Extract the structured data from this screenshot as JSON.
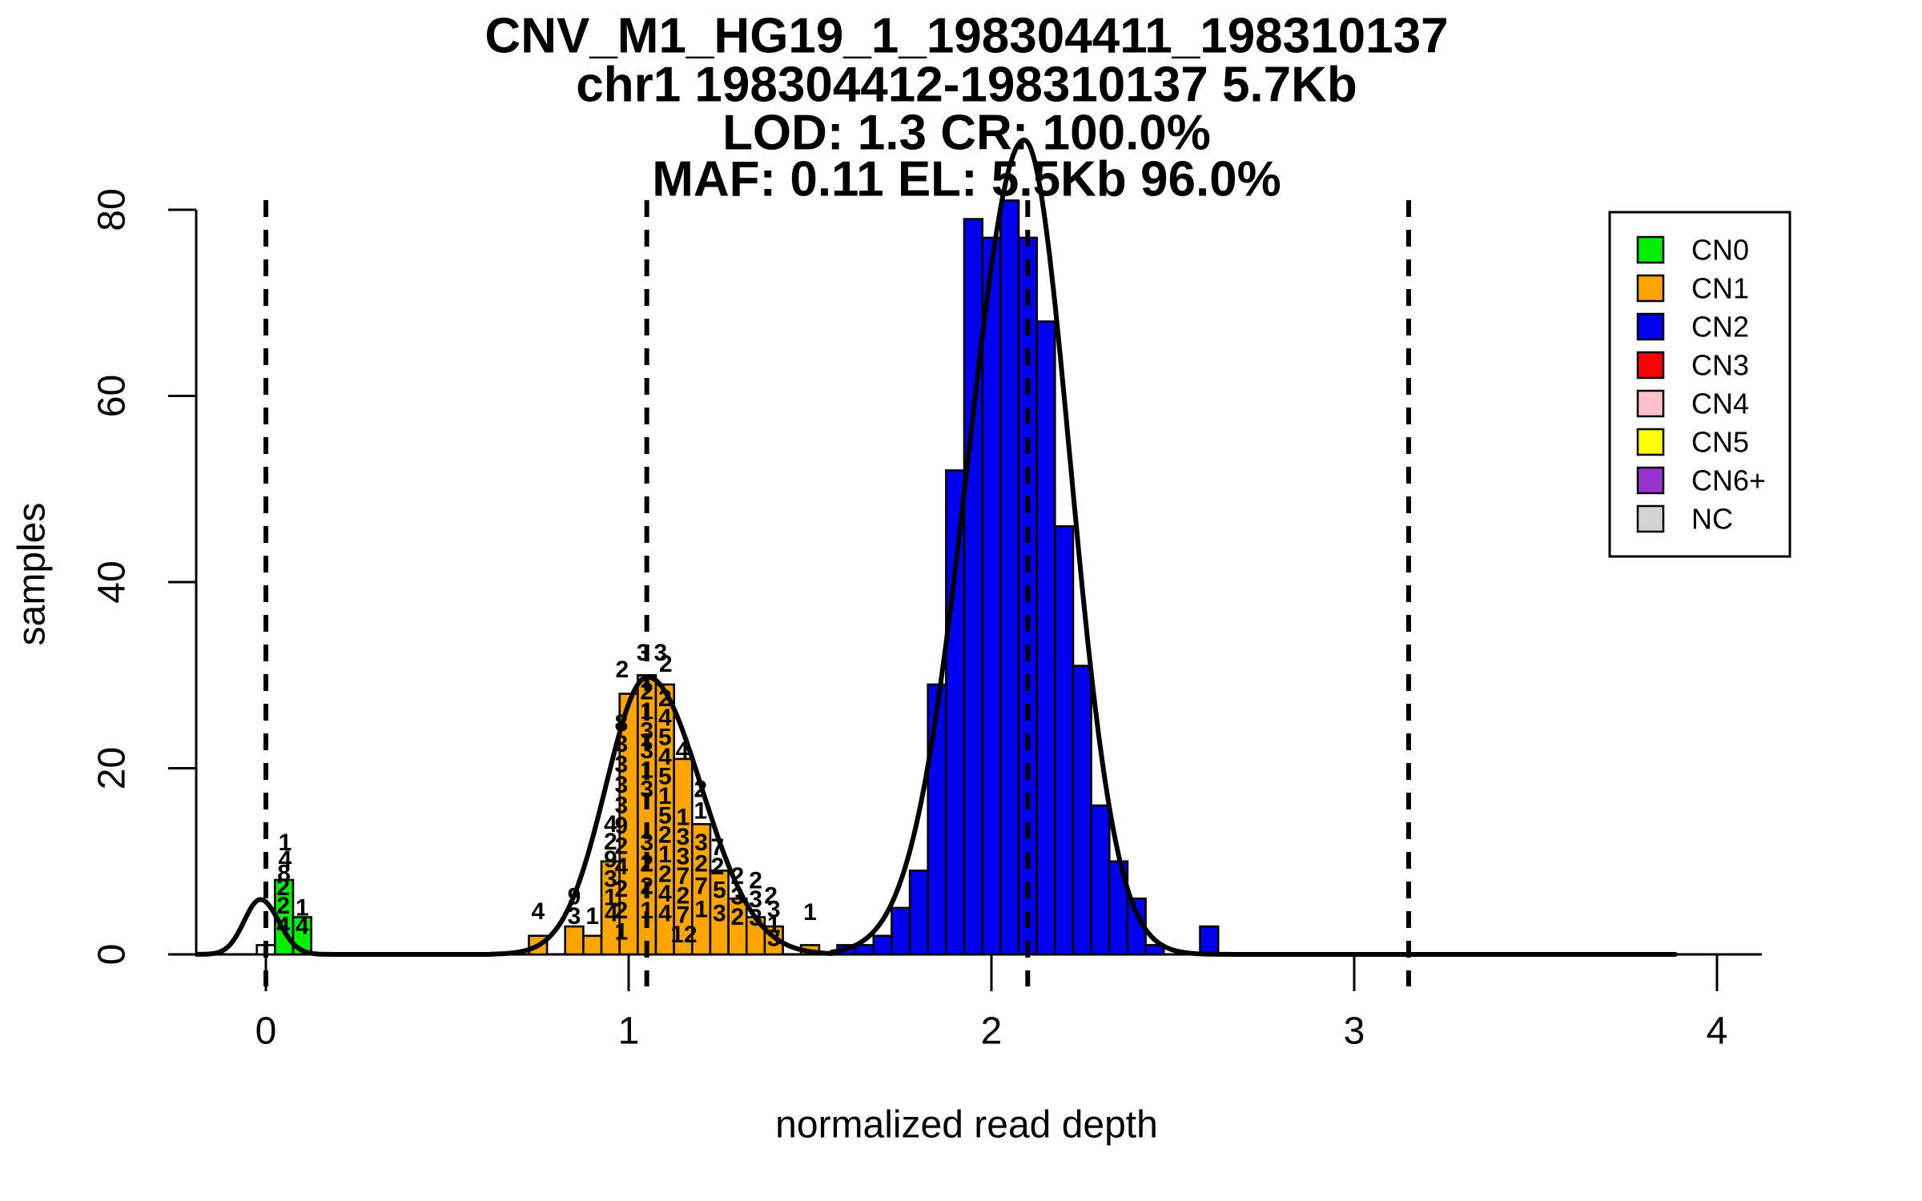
{
  "title": {
    "lines": [
      "CNV_M1_HG19_1_198304411_198310137",
      "chr1 198304412-198310137 5.7Kb",
      "LOD: 1.3 CR: 100.0%",
      "MAF: 0.11 EL: 5.5Kb 96.0%"
    ]
  },
  "axes": {
    "x_label": "normalized read depth",
    "y_label": "samples",
    "x_ticks": [
      0,
      1,
      2,
      3,
      4
    ],
    "y_ticks": [
      0,
      20,
      40,
      60,
      80
    ]
  },
  "legend": {
    "items": [
      {
        "label": "CN0",
        "color": "#00ee00"
      },
      {
        "label": "CN1",
        "color": "#ffa500"
      },
      {
        "label": "CN2",
        "color": "#0000ee"
      },
      {
        "label": "CN3",
        "color": "#ff0000"
      },
      {
        "label": "CN4",
        "color": "#ffc0cb"
      },
      {
        "label": "CN5",
        "color": "#ffff00"
      },
      {
        "label": "CN6+",
        "color": "#9932cc"
      },
      {
        "label": "NC",
        "color": "#d3d3d3"
      }
    ]
  },
  "chart_data": {
    "type": "bar",
    "subtype": "histogram-with-gaussian-fits",
    "title": "CNV_M1_HG19_1_198304411_198310137",
    "xlabel": "normalized read depth",
    "ylabel": "samples",
    "xlim": [
      -0.26,
      4.12
    ],
    "ylim": [
      0,
      84
    ],
    "grid": false,
    "legend_position": "top-right",
    "bin_width": 0.05,
    "dashed_lines_x": [
      0,
      1.05,
      2.1,
      3.15
    ],
    "series": [
      {
        "name": "NC",
        "color": "#ffffff",
        "bars": [
          [
            -0.025,
            1
          ]
        ]
      },
      {
        "name": "CN0",
        "color": "#00ee00",
        "bars": [
          [
            0.025,
            8
          ],
          [
            0.075,
            4
          ]
        ]
      },
      {
        "name": "CN1",
        "color": "#ffa500",
        "bars": [
          [
            0.725,
            2
          ],
          [
            0.825,
            3
          ],
          [
            0.875,
            2
          ],
          [
            0.925,
            10
          ],
          [
            0.975,
            28
          ],
          [
            1.025,
            30
          ],
          [
            1.075,
            29
          ],
          [
            1.125,
            21
          ],
          [
            1.175,
            14
          ],
          [
            1.225,
            9
          ],
          [
            1.275,
            6
          ],
          [
            1.325,
            4
          ],
          [
            1.375,
            3
          ],
          [
            1.475,
            1
          ]
        ]
      },
      {
        "name": "CN2",
        "color": "#0000ee",
        "bars": [
          [
            1.575,
            1
          ],
          [
            1.625,
            1
          ],
          [
            1.675,
            2
          ],
          [
            1.725,
            5
          ],
          [
            1.775,
            9
          ],
          [
            1.825,
            29
          ],
          [
            1.875,
            52
          ],
          [
            1.925,
            79
          ],
          [
            1.975,
            77
          ],
          [
            2.025,
            81
          ],
          [
            2.075,
            77
          ],
          [
            2.125,
            68
          ],
          [
            2.175,
            46
          ],
          [
            2.225,
            31
          ],
          [
            2.275,
            16
          ],
          [
            2.325,
            10
          ],
          [
            2.375,
            6
          ],
          [
            2.425,
            1
          ],
          [
            2.575,
            3
          ]
        ]
      }
    ],
    "curves": [
      {
        "name": "CN0-fit",
        "mean": -0.015,
        "sd_left": 0.045,
        "sd_right": 0.05,
        "peak": 5.9,
        "domain": [
          -0.19,
          0.62
        ]
      },
      {
        "name": "CN1-fit",
        "mean": 1.052,
        "sd_left": 0.115,
        "sd_right": 0.148,
        "peak": 29.8,
        "domain": [
          0.62,
          1.56
        ]
      },
      {
        "name": "CN2-fit",
        "mean": 2.09,
        "sd_left": 0.155,
        "sd_right": 0.127,
        "peak": 87.5,
        "domain": [
          1.56,
          3.887
        ]
      }
    ],
    "bar_labels": [
      [
        "1",
        0.053,
        12.0
      ],
      [
        "4",
        0.053,
        10.2
      ],
      [
        "8",
        0.05,
        8.7
      ],
      [
        "2",
        0.048,
        7.2
      ],
      [
        "2",
        0.048,
        5.2
      ],
      [
        "4",
        0.048,
        3.1
      ],
      [
        "1",
        0.1,
        5.0
      ],
      [
        "4",
        0.1,
        3.0
      ],
      [
        "4",
        0.75,
        4.6
      ],
      [
        "9",
        0.85,
        6.2
      ],
      [
        "3",
        0.85,
        4.1
      ],
      [
        "1",
        0.9,
        4.1
      ],
      [
        "4",
        0.95,
        14.0
      ],
      [
        "2",
        0.95,
        12.1
      ],
      [
        "9",
        0.95,
        10.2
      ],
      [
        "3",
        0.95,
        8.1
      ],
      [
        "1",
        0.95,
        6.1
      ],
      [
        "4",
        0.952,
        4.4
      ],
      [
        "2",
        0.982,
        30.6
      ],
      [
        "8",
        0.98,
        24.8
      ],
      [
        "3",
        0.98,
        22.6
      ],
      [
        "3",
        0.98,
        20.4
      ],
      [
        "3",
        0.98,
        18.2
      ],
      [
        "3",
        0.98,
        16.0
      ],
      [
        "9",
        0.98,
        13.8
      ],
      [
        "2",
        0.98,
        11.6
      ],
      [
        "4",
        0.98,
        9.4
      ],
      [
        "2",
        0.98,
        7.0
      ],
      [
        "2",
        0.98,
        4.7
      ],
      [
        "1",
        0.98,
        2.4
      ],
      [
        "3",
        1.04,
        32.4
      ],
      [
        "2",
        1.05,
        28.2
      ],
      [
        "1",
        1.05,
        26.1
      ],
      [
        "3",
        1.05,
        24.0
      ],
      [
        "3",
        1.05,
        21.9
      ],
      [
        "1",
        1.05,
        19.8
      ],
      [
        "3",
        1.05,
        17.7
      ],
      [
        "3",
        1.05,
        12.0
      ],
      [
        "2",
        1.05,
        9.7
      ],
      [
        "2",
        1.05,
        7.3
      ],
      [
        "1",
        1.05,
        4.7
      ],
      [
        "3",
        1.088,
        32.4
      ],
      [
        "2",
        1.102,
        31.2
      ],
      [
        "2",
        1.1,
        27.5
      ],
      [
        "4",
        1.1,
        25.4
      ],
      [
        "5",
        1.1,
        23.3
      ],
      [
        "4",
        1.1,
        21.2
      ],
      [
        "5",
        1.1,
        19.1
      ],
      [
        "1",
        1.1,
        17.0
      ],
      [
        "5",
        1.1,
        14.9
      ],
      [
        "2",
        1.1,
        12.8
      ],
      [
        "1",
        1.1,
        10.7
      ],
      [
        "2",
        1.1,
        8.6
      ],
      [
        "4",
        1.1,
        6.5
      ],
      [
        "4",
        1.1,
        4.4
      ],
      [
        "4",
        1.148,
        21.9
      ],
      [
        "1",
        1.15,
        14.7
      ],
      [
        "3",
        1.15,
        12.6
      ],
      [
        "3",
        1.15,
        10.5
      ],
      [
        "7",
        1.15,
        8.4
      ],
      [
        "2",
        1.15,
        6.3
      ],
      [
        "7",
        1.15,
        4.2
      ],
      [
        "12",
        1.152,
        2.1
      ],
      [
        "2",
        1.198,
        17.7
      ],
      [
        "1",
        1.198,
        15.4
      ],
      [
        "3",
        1.2,
        12.0
      ],
      [
        "2",
        1.2,
        9.7
      ],
      [
        "7",
        1.2,
        7.3
      ],
      [
        "1",
        1.2,
        4.8
      ],
      [
        "7",
        1.245,
        11.5
      ],
      [
        "2",
        1.245,
        9.4
      ],
      [
        "5",
        1.25,
        6.9
      ],
      [
        "3",
        1.25,
        4.4
      ],
      [
        "2",
        1.3,
        8.4
      ],
      [
        "3",
        1.3,
        6.2
      ],
      [
        "2",
        1.3,
        4.0
      ],
      [
        "2",
        1.35,
        7.9
      ],
      [
        "3",
        1.35,
        5.9
      ],
      [
        "3",
        1.35,
        3.9
      ],
      [
        "2",
        1.392,
        6.3
      ],
      [
        "3",
        1.4,
        4.8
      ],
      [
        "1",
        1.4,
        3.2
      ],
      [
        "3",
        1.4,
        1.7
      ],
      [
        "1",
        1.5,
        4.5
      ]
    ]
  }
}
